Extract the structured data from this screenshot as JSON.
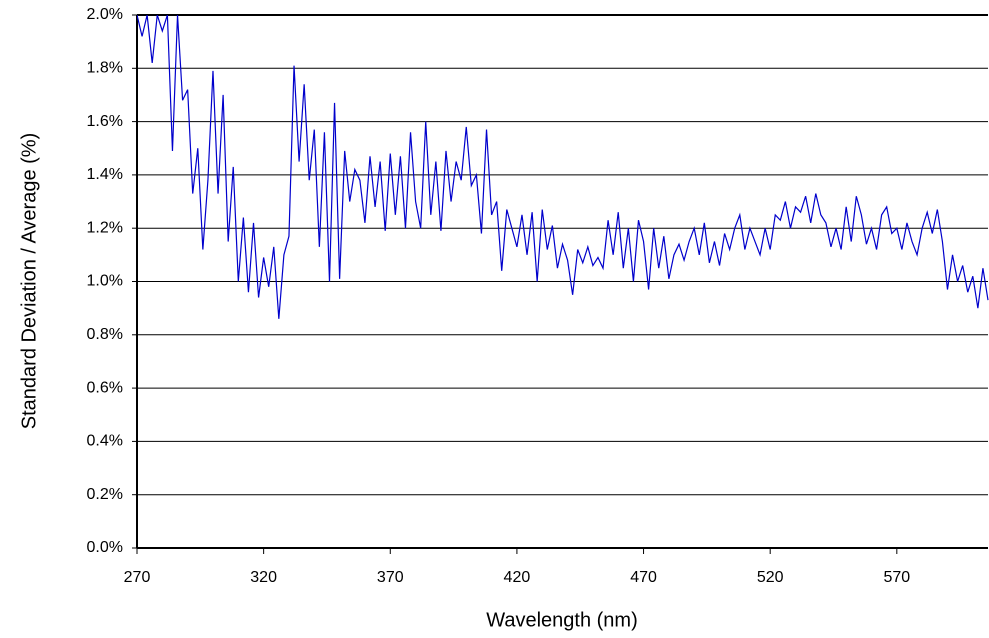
{
  "chart_data": {
    "type": "line",
    "x_label": "Wavelength (nm)",
    "y_label": "Standard Deviation / Average (%)",
    "x": [
      270,
      272,
      274,
      276,
      278,
      280,
      282,
      284,
      286,
      288,
      290,
      292,
      294,
      296,
      298,
      300,
      302,
      304,
      306,
      308,
      310,
      312,
      314,
      316,
      318,
      320,
      322,
      324,
      326,
      328,
      330,
      332,
      334,
      336,
      338,
      340,
      342,
      344,
      346,
      348,
      350,
      352,
      354,
      356,
      358,
      360,
      362,
      364,
      366,
      368,
      370,
      372,
      374,
      376,
      378,
      380,
      382,
      384,
      386,
      388,
      390,
      392,
      394,
      396,
      398,
      400,
      402,
      404,
      406,
      408,
      410,
      412,
      414,
      416,
      418,
      420,
      422,
      424,
      426,
      428,
      430,
      432,
      434,
      436,
      438,
      440,
      442,
      444,
      446,
      448,
      450,
      452,
      454,
      456,
      458,
      460,
      462,
      464,
      466,
      468,
      470,
      472,
      474,
      476,
      478,
      480,
      482,
      484,
      486,
      488,
      490,
      492,
      494,
      496,
      498,
      500,
      502,
      504,
      506,
      508,
      510,
      512,
      514,
      516,
      518,
      520,
      522,
      524,
      526,
      528,
      530,
      532,
      534,
      536,
      538,
      540,
      542,
      544,
      546,
      548,
      550,
      552,
      554,
      556,
      558,
      560,
      562,
      564,
      566,
      568,
      570,
      572,
      574,
      576,
      578,
      580,
      582,
      584,
      586,
      588,
      590,
      592,
      594,
      596,
      598,
      600,
      602,
      604,
      606
    ],
    "values": [
      2.0,
      1.92,
      2.0,
      1.82,
      2.0,
      1.94,
      2.0,
      1.49,
      2.0,
      1.68,
      1.72,
      1.33,
      1.5,
      1.12,
      1.38,
      1.79,
      1.33,
      1.7,
      1.15,
      1.43,
      1.0,
      1.24,
      0.96,
      1.22,
      0.94,
      1.09,
      0.98,
      1.13,
      0.86,
      1.1,
      1.17,
      1.81,
      1.45,
      1.74,
      1.38,
      1.57,
      1.13,
      1.56,
      1.0,
      1.67,
      1.01,
      1.49,
      1.3,
      1.42,
      1.38,
      1.22,
      1.47,
      1.28,
      1.45,
      1.19,
      1.48,
      1.25,
      1.47,
      1.2,
      1.56,
      1.3,
      1.2,
      1.6,
      1.25,
      1.45,
      1.19,
      1.49,
      1.3,
      1.45,
      1.38,
      1.58,
      1.36,
      1.4,
      1.18,
      1.57,
      1.25,
      1.3,
      1.04,
      1.27,
      1.2,
      1.13,
      1.25,
      1.1,
      1.26,
      1.0,
      1.27,
      1.12,
      1.21,
      1.05,
      1.14,
      1.08,
      0.95,
      1.12,
      1.07,
      1.13,
      1.06,
      1.09,
      1.05,
      1.23,
      1.1,
      1.26,
      1.05,
      1.2,
      1.0,
      1.23,
      1.15,
      0.97,
      1.2,
      1.05,
      1.17,
      1.01,
      1.1,
      1.14,
      1.08,
      1.15,
      1.2,
      1.1,
      1.22,
      1.07,
      1.15,
      1.06,
      1.18,
      1.12,
      1.2,
      1.25,
      1.12,
      1.2,
      1.15,
      1.1,
      1.2,
      1.12,
      1.25,
      1.23,
      1.3,
      1.2,
      1.28,
      1.26,
      1.32,
      1.22,
      1.33,
      1.25,
      1.22,
      1.13,
      1.2,
      1.12,
      1.28,
      1.15,
      1.32,
      1.25,
      1.14,
      1.2,
      1.12,
      1.25,
      1.28,
      1.18,
      1.2,
      1.12,
      1.22,
      1.15,
      1.1,
      1.2,
      1.26,
      1.18,
      1.27,
      1.15,
      0.97,
      1.1,
      1.0,
      1.06,
      0.96,
      1.02,
      0.9,
      1.05,
      0.93
    ],
    "color": "#0000cc",
    "xlim": [
      270,
      606
    ],
    "xticks": [
      270,
      320,
      370,
      420,
      470,
      520,
      570
    ],
    "ylim": [
      0,
      2.0
    ],
    "yticks": [
      {
        "value": 0,
        "label": "0.0%"
      },
      {
        "value": 0.2,
        "label": "0.2%"
      },
      {
        "value": 0.4,
        "label": "0.4%"
      },
      {
        "value": 0.6,
        "label": "0.6%"
      },
      {
        "value": 0.8,
        "label": "0.8%"
      },
      {
        "value": 1.0,
        "label": "1.0%"
      },
      {
        "value": 1.2,
        "label": "1.2%"
      },
      {
        "value": 1.4,
        "label": "1.4%"
      },
      {
        "value": 1.6,
        "label": "1.6%"
      },
      {
        "value": 1.8,
        "label": "1.8%"
      },
      {
        "value": 2.0,
        "label": "2.0%"
      }
    ],
    "grid": true
  }
}
